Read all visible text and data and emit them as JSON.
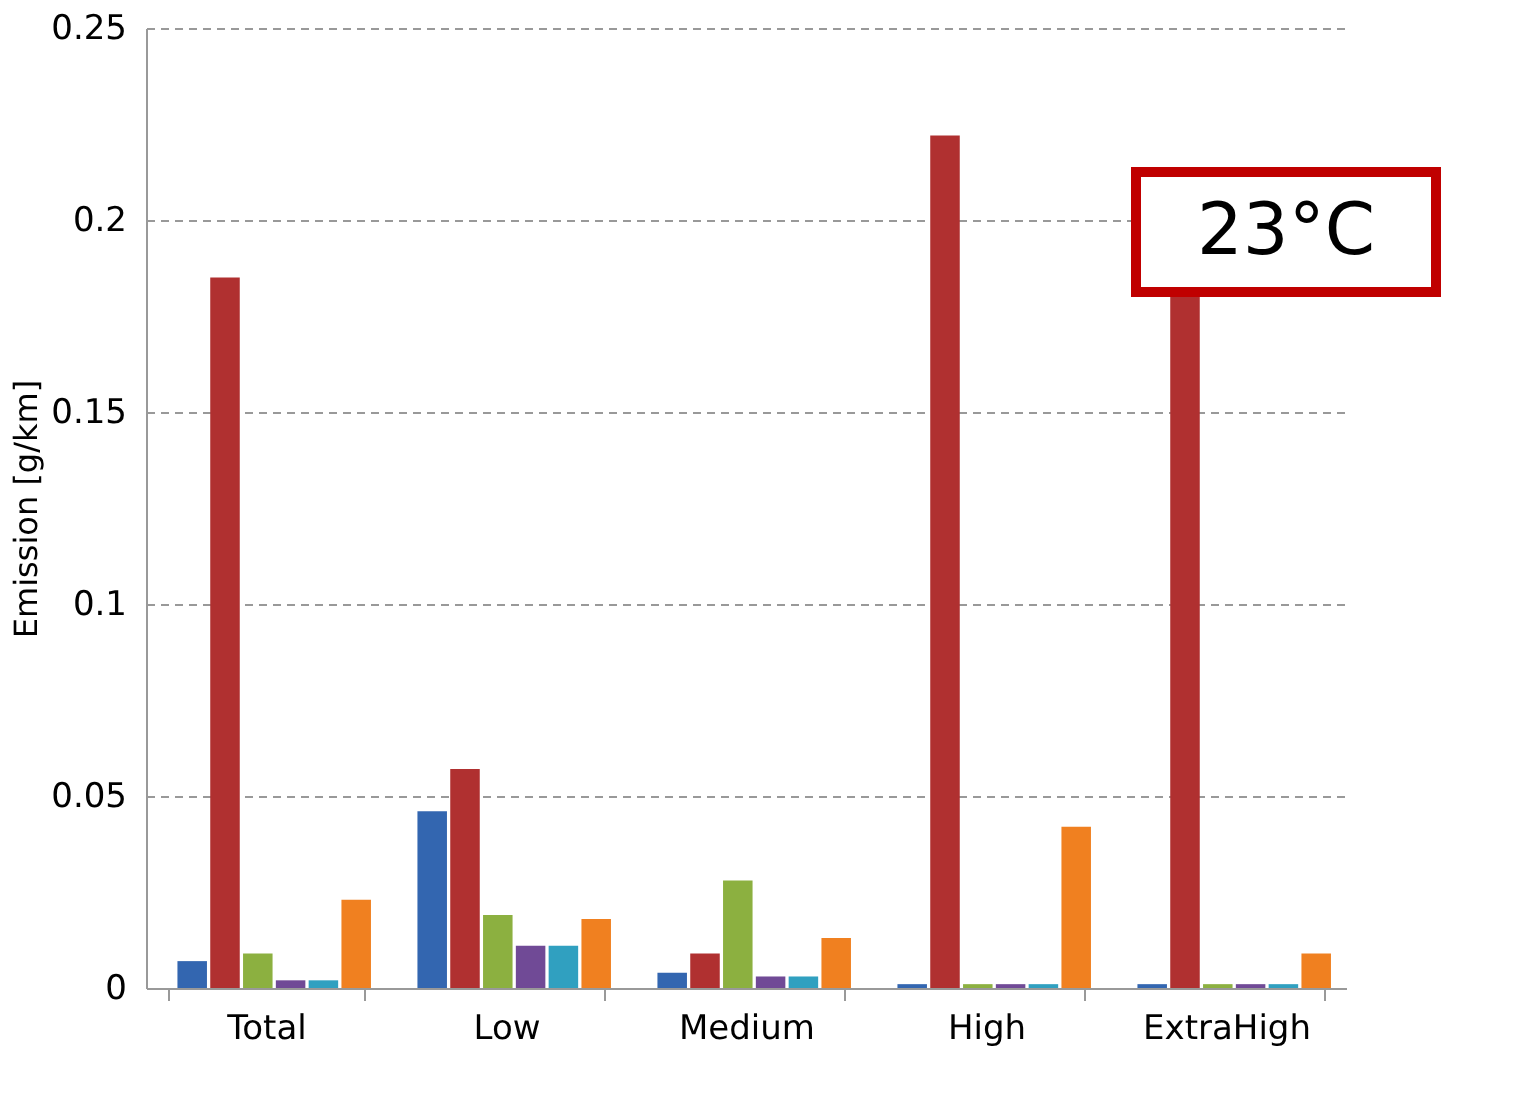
{
  "chart_data": {
    "type": "bar",
    "ylabel": "Emission [g/km]",
    "categories": [
      "Total",
      "Low",
      "Medium",
      "High",
      "ExtraHigh"
    ],
    "series": [
      {
        "color": "#3366b0",
        "values": [
          0.007,
          0.046,
          0.004,
          0.001,
          0.001
        ]
      },
      {
        "color": "#b03030",
        "values": [
          0.185,
          0.057,
          0.009,
          0.222,
          0.18
        ]
      },
      {
        "color": "#8cb040",
        "values": [
          0.009,
          0.019,
          0.028,
          0.001,
          0.001
        ]
      },
      {
        "color": "#704a96",
        "values": [
          0.002,
          0.011,
          0.003,
          0.001,
          0.001
        ]
      },
      {
        "color": "#30a0c0",
        "values": [
          0.002,
          0.011,
          0.003,
          0.001,
          0.001
        ]
      },
      {
        "color": "#f08020",
        "values": [
          0.023,
          0.018,
          0.013,
          0.042,
          0.009
        ]
      }
    ],
    "ylim": [
      0,
      0.25
    ],
    "yticks": [
      0,
      0.05,
      0.1,
      0.15,
      0.2,
      0.25
    ],
    "grid": "y",
    "legend": false,
    "annotations": [
      "23°C"
    ]
  }
}
